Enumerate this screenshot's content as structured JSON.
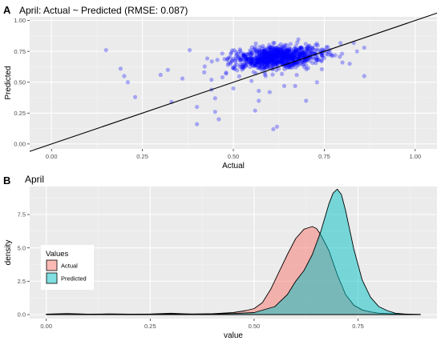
{
  "panel_a_tag": "A",
  "panel_b_tag": "B",
  "chart_data": [
    {
      "type": "scatter",
      "title": "April: Actual ~ Predicted (RMSE: 0.087)",
      "xlabel": "Actual",
      "ylabel": "Predicted",
      "xlim": [
        -0.06,
        1.06
      ],
      "ylim": [
        -0.04,
        1.03
      ],
      "x_ticks": [
        "0.00",
        "0.25",
        "0.50",
        "0.75",
        "1.00"
      ],
      "y_ticks": [
        "0.00",
        "0.25",
        "0.50",
        "0.75",
        "1.00"
      ],
      "grid": true,
      "point_color": "#0000ff",
      "reference_line": {
        "intercept": 0.0,
        "slope": 1.0,
        "color": "#000000"
      },
      "points": [
        [
          0.15,
          0.76
        ],
        [
          0.19,
          0.61
        ],
        [
          0.2,
          0.55
        ],
        [
          0.21,
          0.5
        ],
        [
          0.23,
          0.38
        ],
        [
          0.3,
          0.56
        ],
        [
          0.32,
          0.6
        ],
        [
          0.33,
          0.34
        ],
        [
          0.36,
          0.53
        ],
        [
          0.38,
          0.76
        ],
        [
          0.4,
          0.3
        ],
        [
          0.4,
          0.16
        ],
        [
          0.42,
          0.58
        ],
        [
          0.44,
          0.52
        ],
        [
          0.44,
          0.44
        ],
        [
          0.45,
          0.26
        ],
        [
          0.45,
          0.37
        ],
        [
          0.46,
          0.2
        ],
        [
          0.47,
          0.54
        ],
        [
          0.48,
          0.57
        ],
        [
          0.5,
          0.45
        ],
        [
          0.5,
          0.62
        ],
        [
          0.55,
          0.51
        ],
        [
          0.56,
          0.27
        ],
        [
          0.57,
          0.43
        ],
        [
          0.57,
          0.35
        ],
        [
          0.6,
          0.42
        ],
        [
          0.61,
          0.12
        ],
        [
          0.62,
          0.14
        ],
        [
          0.64,
          0.47
        ],
        [
          0.67,
          0.47
        ],
        [
          0.7,
          0.35
        ],
        [
          0.73,
          0.5
        ],
        [
          0.8,
          0.66
        ],
        [
          0.82,
          0.65
        ],
        [
          0.84,
          0.75
        ],
        [
          0.86,
          0.78
        ],
        [
          0.86,
          0.55
        ]
      ],
      "cloud": {
        "n": 950,
        "center": [
          0.62,
          0.7
        ],
        "sd": [
          0.06,
          0.045
        ],
        "slope": 0.2
      }
    },
    {
      "type": "area",
      "title": "April",
      "xlabel": "value",
      "ylabel": "density",
      "xlim": [
        -0.04,
        0.94
      ],
      "ylim": [
        -0.3,
        9.6
      ],
      "x_ticks": [
        "0.00",
        "0.25",
        "0.50",
        "0.75"
      ],
      "y_ticks": [
        "0.0",
        "2.5",
        "5.0",
        "7.5"
      ],
      "grid": true,
      "legend": {
        "title": "Values",
        "placement": "left",
        "entries": [
          {
            "name": "Actual",
            "color": "#f8766d"
          },
          {
            "name": "Predicted",
            "color": "#00bfc4"
          }
        ]
      },
      "series": [
        {
          "name": "Actual",
          "color": "#f8766d",
          "points": [
            [
              0.0,
              0.03
            ],
            [
              0.05,
              0.08
            ],
            [
              0.1,
              0.03
            ],
            [
              0.15,
              0.05
            ],
            [
              0.2,
              0.03
            ],
            [
              0.25,
              0.04
            ],
            [
              0.3,
              0.1
            ],
            [
              0.35,
              0.03
            ],
            [
              0.4,
              0.06
            ],
            [
              0.45,
              0.15
            ],
            [
              0.48,
              0.3
            ],
            [
              0.5,
              0.45
            ],
            [
              0.52,
              0.9
            ],
            [
              0.54,
              1.9
            ],
            [
              0.56,
              3.2
            ],
            [
              0.58,
              4.5
            ],
            [
              0.6,
              5.7
            ],
            [
              0.62,
              6.4
            ],
            [
              0.64,
              6.6
            ],
            [
              0.65,
              6.45
            ],
            [
              0.66,
              6.0
            ],
            [
              0.68,
              4.8
            ],
            [
              0.7,
              3.0
            ],
            [
              0.72,
              1.5
            ],
            [
              0.74,
              0.7
            ],
            [
              0.76,
              0.35
            ],
            [
              0.78,
              0.2
            ],
            [
              0.8,
              0.1
            ],
            [
              0.85,
              0.04
            ],
            [
              0.9,
              0.01
            ]
          ]
        },
        {
          "name": "Predicted",
          "color": "#00bfc4",
          "points": [
            [
              0.0,
              0.02
            ],
            [
              0.1,
              0.02
            ],
            [
              0.15,
              0.04
            ],
            [
              0.2,
              0.03
            ],
            [
              0.3,
              0.04
            ],
            [
              0.4,
              0.05
            ],
            [
              0.45,
              0.08
            ],
            [
              0.5,
              0.15
            ],
            [
              0.55,
              0.6
            ],
            [
              0.58,
              1.5
            ],
            [
              0.6,
              2.5
            ],
            [
              0.62,
              3.3
            ],
            [
              0.64,
              4.5
            ],
            [
              0.66,
              6.2
            ],
            [
              0.68,
              8.3
            ],
            [
              0.69,
              9.1
            ],
            [
              0.7,
              9.4
            ],
            [
              0.71,
              9.0
            ],
            [
              0.72,
              7.8
            ],
            [
              0.74,
              4.9
            ],
            [
              0.76,
              2.6
            ],
            [
              0.78,
              1.3
            ],
            [
              0.8,
              0.6
            ],
            [
              0.82,
              0.3
            ],
            [
              0.84,
              0.1
            ],
            [
              0.86,
              0.05
            ],
            [
              0.88,
              0.02
            ],
            [
              0.9,
              0.01
            ]
          ]
        }
      ]
    }
  ]
}
